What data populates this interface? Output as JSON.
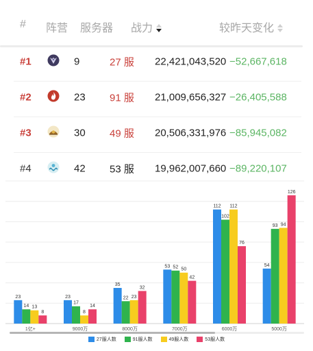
{
  "table": {
    "headers": {
      "rank": "#",
      "faction": "阵营",
      "server_count": "服务器",
      "power": "战力",
      "daily_change": "较昨天变化"
    },
    "sort": {
      "column": "power",
      "direction": "descending"
    },
    "rows": [
      {
        "rank": "#1",
        "faction_icon": "faction-shield-crest-icon",
        "servers": "9",
        "server_id": "27 服",
        "power": "22,421,043,520",
        "change": "−52,667,618"
      },
      {
        "rank": "#2",
        "faction_icon": "faction-flame-icon",
        "servers": "23",
        "server_id": "91 服",
        "power": "21,009,656,327",
        "change": "−26,405,588"
      },
      {
        "rank": "#3",
        "faction_icon": "faction-sun-icon",
        "servers": "30",
        "server_id": "49 服",
        "power": "20,506,331,976",
        "change": "−85,945,082"
      },
      {
        "rank": "#4",
        "faction_icon": "faction-wave-icon",
        "servers": "42",
        "server_id": "53 服",
        "power": "19,962,007,660",
        "change": "−89,220,107"
      }
    ],
    "colors": {
      "top_rank": "#c9403a",
      "delta_negative": "#5bb563",
      "header_text": "#a8a8a8"
    }
  },
  "chart_data": {
    "type": "bar",
    "categories": [
      "1亿+",
      "9000万",
      "8000万",
      "7000万",
      "6000万",
      "5000万"
    ],
    "series": [
      {
        "name": "27服人数",
        "color": "#2d8ce8",
        "values": [
          23,
          23,
          35,
          53,
          112,
          54
        ]
      },
      {
        "name": "91服人数",
        "color": "#2fb34d",
        "values": [
          14,
          17,
          22,
          52,
          102,
          93
        ]
      },
      {
        "name": "49服人数",
        "color": "#f7cc1f",
        "values": [
          13,
          8,
          23,
          50,
          112,
          94
        ]
      },
      {
        "name": "53服人数",
        "color": "#e9416a",
        "values": [
          8,
          14,
          32,
          42,
          76,
          126
        ]
      }
    ],
    "ylim": [
      0,
      140
    ],
    "grid": true,
    "data_labels": true,
    "legend_position": "bottom-center",
    "title": "",
    "xlabel": "",
    "ylabel": ""
  }
}
